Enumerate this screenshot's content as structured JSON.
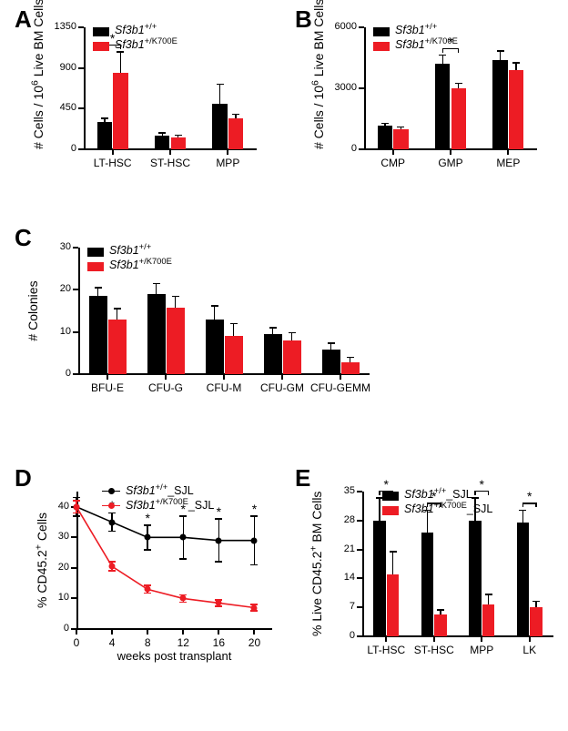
{
  "colors": {
    "wt": "#000000",
    "mut": "#ed1c24",
    "axis": "#000000",
    "bg": "#ffffff"
  },
  "legends": {
    "bar": {
      "wt_html": "<span class='italic'>Sf3b1</span><span class='sup'>+/+</span>",
      "mut_html": "<span class='italic'>Sf3b1</span><span class='sup'>+/K700E</span>"
    },
    "line": {
      "wt_html": "<span class='italic'>Sf3b1</span><span class='sup'>+/+</span>_SJL",
      "mut_html": "<span class='italic'>Sf3b1</span><span class='sup'>+/K700E</span>_SJL"
    }
  },
  "panelA": {
    "label": "A",
    "ylabel_html": "# Cells / 10<span class='sup'>6</span> Live BM Cells",
    "ylim": [
      0,
      1350
    ],
    "yticks": [
      0,
      450,
      900,
      1350
    ],
    "categories": [
      "LT-HSC",
      "ST-HSC",
      "MPP"
    ],
    "wt": [
      300,
      150,
      500
    ],
    "mut": [
      850,
      130,
      340
    ],
    "wt_err": [
      45,
      30,
      220
    ],
    "mut_err": [
      230,
      25,
      50
    ],
    "sig": [
      true,
      false,
      false
    ]
  },
  "panelB": {
    "label": "B",
    "ylabel_html": "# Cells / 10<span class='sup'>6</span> Live BM Cells",
    "ylim": [
      0,
      6000
    ],
    "yticks": [
      0,
      3000,
      6000
    ],
    "categories": [
      "CMP",
      "GMP",
      "MEP"
    ],
    "wt": [
      1150,
      4200,
      4400
    ],
    "mut": [
      1000,
      3000,
      3900
    ],
    "wt_err": [
      120,
      430,
      430
    ],
    "mut_err": [
      100,
      250,
      350
    ],
    "sig": [
      false,
      true,
      false
    ]
  },
  "panelC": {
    "label": "C",
    "ylabel": "# Colonies",
    "ylim": [
      0,
      30
    ],
    "yticks": [
      0,
      10,
      20,
      30
    ],
    "categories": [
      "BFU-E",
      "CFU-G",
      "CFU-M",
      "CFU-GM",
      "CFU-GEMM"
    ],
    "wt": [
      18.5,
      19.0,
      13.0,
      9.5,
      5.8
    ],
    "mut": [
      13.0,
      15.8,
      9.0,
      8.0,
      2.8
    ],
    "wt_err": [
      2.0,
      2.5,
      3.2,
      1.5,
      1.5
    ],
    "mut_err": [
      2.5,
      2.7,
      3.0,
      1.8,
      1.2
    ],
    "sig": [
      false,
      false,
      false,
      false,
      false
    ]
  },
  "panelD": {
    "label": "D",
    "ylabel_html": "% CD45.2<span class='sup'>+</span> Cells",
    "xlabel": "weeks post transplant",
    "xlim": [
      0,
      22
    ],
    "xticks": [
      0,
      4,
      8,
      12,
      16,
      20
    ],
    "ylim": [
      0,
      45
    ],
    "yticks": [
      0,
      10,
      20,
      30,
      40
    ],
    "wt_x": [
      0,
      4,
      8,
      12,
      16,
      20
    ],
    "wt_y": [
      40,
      35,
      30,
      30,
      29,
      29
    ],
    "wt_err": [
      3,
      3,
      4,
      7,
      7,
      8
    ],
    "mut_x": [
      0,
      4,
      8,
      12,
      16,
      20
    ],
    "mut_y": [
      40,
      20.5,
      13,
      10,
      8.5,
      7
    ],
    "mut_err": [
      2,
      1.5,
      1.3,
      1.2,
      1.1,
      1.1
    ],
    "sig_x": [
      4,
      8,
      12,
      16,
      20
    ]
  },
  "panelE": {
    "label": "E",
    "ylabel_html": "% Live CD45.2<span class='sup'>+</span> BM Cells",
    "ylim": [
      0,
      35
    ],
    "yticks": [
      0,
      7,
      14,
      21,
      28,
      35
    ],
    "categories": [
      "LT-HSC",
      "ST-HSC",
      "MPP",
      "LK"
    ],
    "wt": [
      28,
      25,
      28,
      27.5
    ],
    "mut": [
      15,
      5.2,
      7.8,
      7.0
    ],
    "wt_err": [
      5.5,
      5.5,
      5.5,
      3.0
    ],
    "mut_err": [
      5.5,
      1.2,
      2.3,
      1.5
    ],
    "sig": [
      true,
      true,
      true,
      true
    ]
  }
}
